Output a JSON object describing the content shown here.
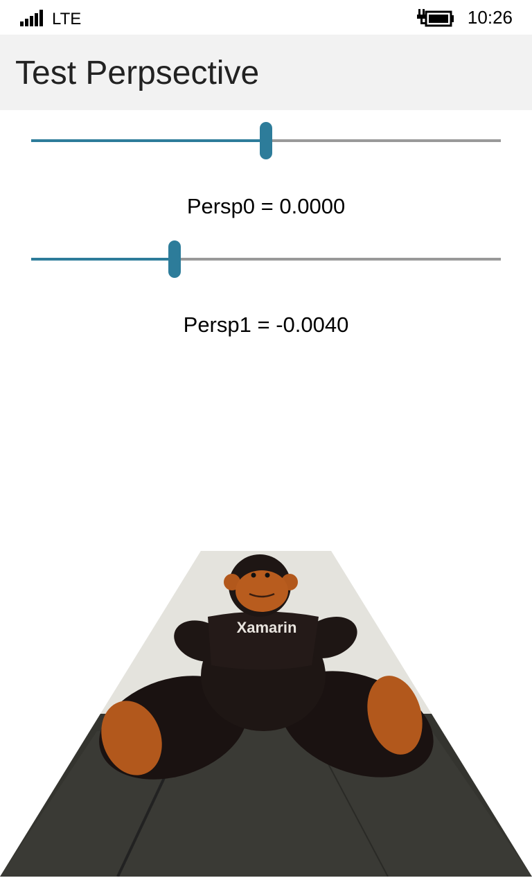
{
  "status_bar": {
    "network": "LTE",
    "time": "10:26",
    "signal_icon": "signal-bars-icon",
    "battery_icon": "battery-charging-icon"
  },
  "title_bar": {
    "title": "Test Perpsective"
  },
  "sliders": [
    {
      "label": "Persp0 = 0.0000",
      "position": 0.5
    },
    {
      "label": "Persp1 = -0.0040",
      "position": 0.305
    }
  ],
  "photo": {
    "shirt_text": "Xamarin"
  },
  "colors": {
    "accent": "#2d7c9a",
    "track": "#999999",
    "title_bar_bg": "#f2f2f2"
  }
}
